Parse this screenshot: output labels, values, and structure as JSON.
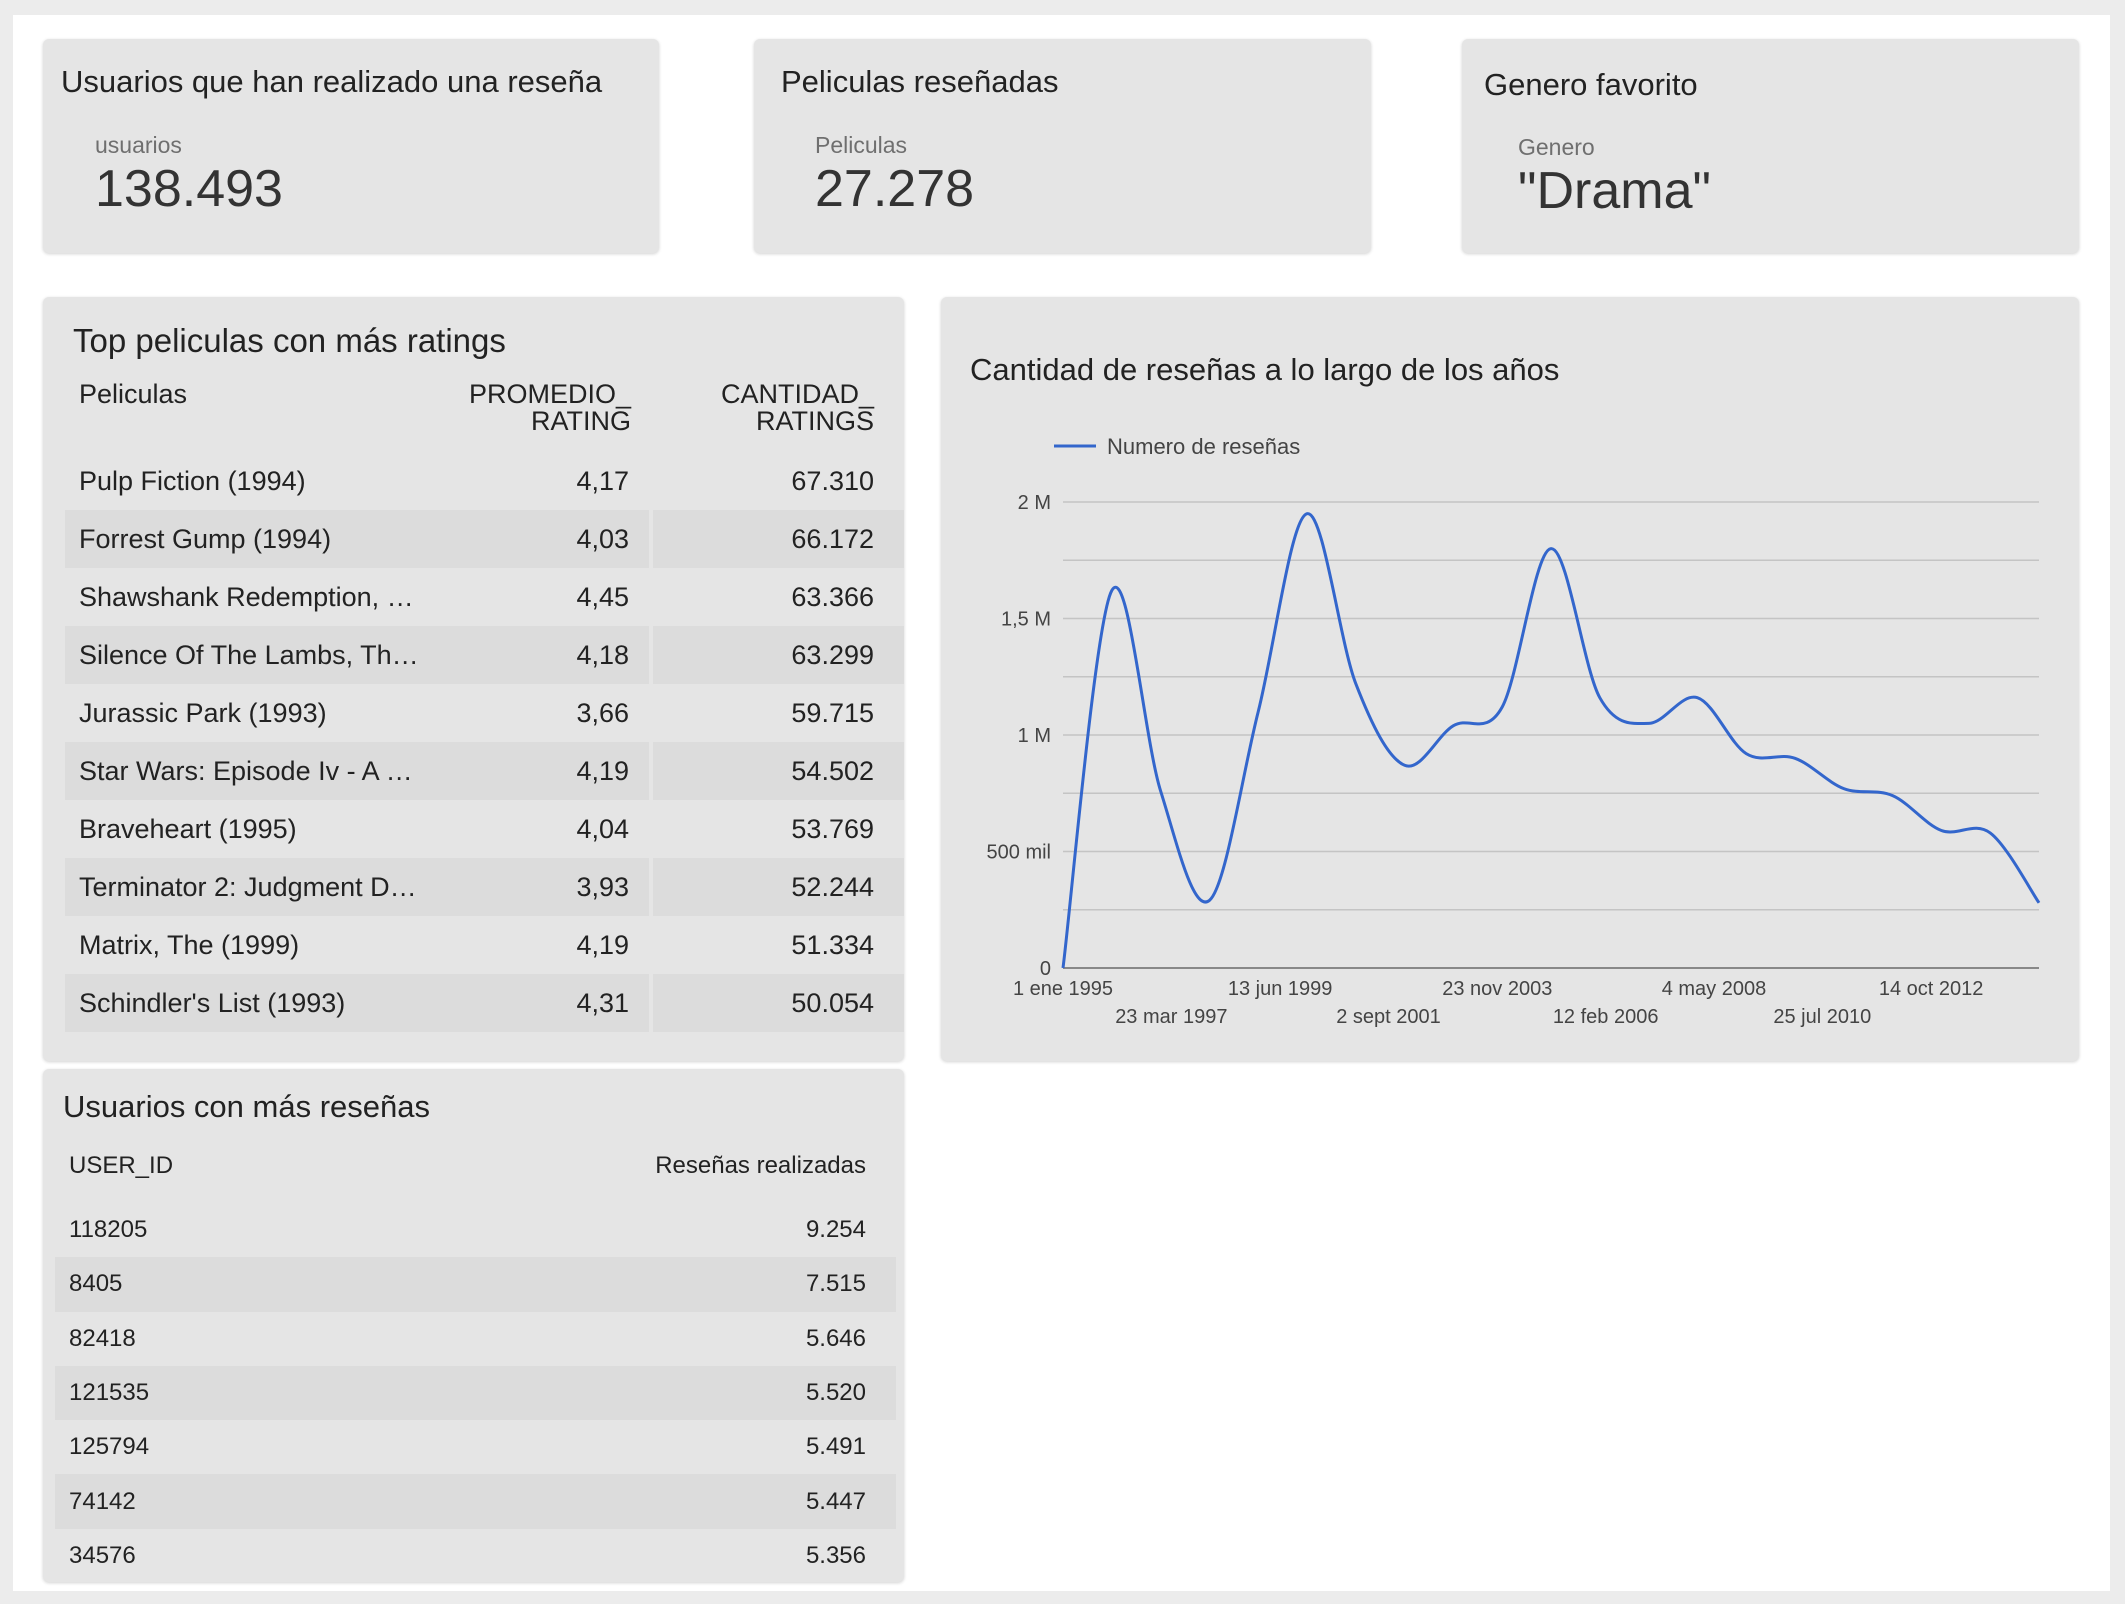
{
  "kpis": [
    {
      "title": "Usuarios que han realizado una reseña",
      "label": "usuarios",
      "value": "138.493"
    },
    {
      "title": "Peliculas reseñadas",
      "label": "Peliculas",
      "value": "27.278"
    },
    {
      "title": "Genero favorito",
      "label": "Genero",
      "value": "\"Drama\""
    }
  ],
  "top_movies": {
    "title": "Top peliculas con más ratings",
    "headers": {
      "name": "Peliculas",
      "avg_line1": "PROMEDIO_",
      "avg_line2": "RATING",
      "count_line1": "CANTIDAD_",
      "count_line2": "RATINGS"
    },
    "rows": [
      {
        "name": "Pulp Fiction (1994)",
        "avg": "4,17",
        "count": "67.310"
      },
      {
        "name": "Forrest Gump (1994)",
        "avg": "4,03",
        "count": "66.172"
      },
      {
        "name": "Shawshank Redemption, …",
        "avg": "4,45",
        "count": "63.366"
      },
      {
        "name": "Silence Of The Lambs, Th…",
        "avg": "4,18",
        "count": "63.299"
      },
      {
        "name": "Jurassic Park (1993)",
        "avg": "3,66",
        "count": "59.715"
      },
      {
        "name": "Star Wars: Episode Iv - A …",
        "avg": "4,19",
        "count": "54.502"
      },
      {
        "name": "Braveheart (1995)",
        "avg": "4,04",
        "count": "53.769"
      },
      {
        "name": "Terminator 2: Judgment D…",
        "avg": "3,93",
        "count": "52.244"
      },
      {
        "name": "Matrix, The (1999)",
        "avg": "4,19",
        "count": "51.334"
      },
      {
        "name": "Schindler's List (1993)",
        "avg": "4,31",
        "count": "50.054"
      }
    ]
  },
  "top_users": {
    "title": "Usuarios con más reseñas",
    "headers": {
      "id": "USER_ID",
      "count": "Reseñas realizadas"
    },
    "rows": [
      {
        "id": "118205",
        "count": "9.254"
      },
      {
        "id": "8405",
        "count": "7.515"
      },
      {
        "id": "82418",
        "count": "5.646"
      },
      {
        "id": "121535",
        "count": "5.520"
      },
      {
        "id": "125794",
        "count": "5.491"
      },
      {
        "id": "74142",
        "count": "5.447"
      },
      {
        "id": "34576",
        "count": "5.356"
      }
    ]
  },
  "chart_data": {
    "type": "line",
    "title": "Cantidad de reseñas a lo largo de los años",
    "legend_position": "top-left",
    "grid": true,
    "series": [
      {
        "name": "Numero de reseñas",
        "color": "#3366cc",
        "x": [
          1995,
          1996,
          1997,
          1998,
          1999,
          2000,
          2001,
          2002,
          2003,
          2004,
          2005,
          2006,
          2007,
          2008,
          2009,
          2010,
          2011,
          2012,
          2013,
          2014,
          2015
        ],
        "values": [
          0,
          1620000,
          760000,
          290000,
          1100000,
          1950000,
          1220000,
          870000,
          1040000,
          1120000,
          1800000,
          1160000,
          1050000,
          1160000,
          920000,
          900000,
          770000,
          740000,
          590000,
          580000,
          280000
        ]
      }
    ],
    "y_ticks": [
      "0",
      "500 mil",
      "1 M",
      "1,5 M",
      "2 M"
    ],
    "y_tick_values": [
      0,
      500000,
      1000000,
      1500000,
      2000000
    ],
    "ylim": [
      0,
      2000000
    ],
    "x_ticks_top": [
      "1 ene 1995",
      "13 jun 1999",
      "23 nov 2003",
      "4 may 2008",
      "14 oct 2012"
    ],
    "x_ticks_top_values": [
      1995.0,
      1999.45,
      2003.9,
      2008.34,
      2012.79
    ],
    "x_ticks_bottom": [
      "23 mar 1997",
      "2 sept 2001",
      "12 feb 2006",
      "25 jul 2010"
    ],
    "x_ticks_bottom_values": [
      1997.22,
      2001.67,
      2006.12,
      2010.56
    ],
    "xlim": [
      1995,
      2015
    ]
  }
}
